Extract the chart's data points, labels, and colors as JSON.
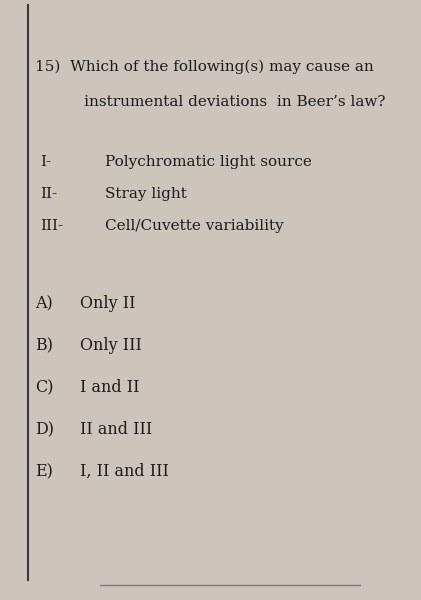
{
  "background_color": "#cbc5bc",
  "left_border_color": "#3a3a3a",
  "bottom_border_color": "#7a7a7a",
  "title_line1": "15)  Which of the following(s) may cause an",
  "title_line2": "       instrumental deviations  in Beer’s law?",
  "items": [
    {
      "label": "I-",
      "text": "Polychromatic light source"
    },
    {
      "label": "II-",
      "text": "Stray light"
    },
    {
      "label": "III-",
      "text": "Cell/Cuvette variability"
    }
  ],
  "choices": [
    {
      "label": "A)",
      "text": "Only II"
    },
    {
      "label": "B)",
      "text": "Only III"
    },
    {
      "label": "C)",
      "text": "I and II"
    },
    {
      "label": "D)",
      "text": "II and III"
    },
    {
      "label": "E)",
      "text": "I, II and III"
    }
  ],
  "font_family": "DejaVu Serif",
  "title_fontsize": 11.0,
  "item_fontsize": 11.0,
  "choice_fontsize": 11.5,
  "text_color": "#1c1c1c",
  "figwidth": 4.21,
  "figheight": 6.0,
  "dpi": 100
}
